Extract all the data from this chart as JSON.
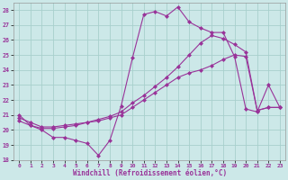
{
  "xlabel": "Windchill (Refroidissement éolien,°C)",
  "xlim": [
    -0.5,
    23.5
  ],
  "ylim": [
    18,
    28.5
  ],
  "xticks": [
    0,
    1,
    2,
    3,
    4,
    5,
    6,
    7,
    8,
    9,
    10,
    11,
    12,
    13,
    14,
    15,
    16,
    17,
    18,
    19,
    20,
    21,
    22,
    23
  ],
  "yticks": [
    18,
    19,
    20,
    21,
    22,
    23,
    24,
    25,
    26,
    27,
    28
  ],
  "bg_color": "#cce8e8",
  "line_color": "#993399",
  "grid_color": "#a8d0cc",
  "line1_x": [
    0,
    1,
    2,
    3,
    4,
    5,
    6,
    7,
    8,
    9,
    10,
    11,
    12,
    13,
    14,
    15,
    16,
    17,
    18,
    19,
    20,
    21,
    22,
    23
  ],
  "line1_y": [
    21.0,
    20.3,
    20.0,
    19.5,
    19.5,
    19.3,
    19.1,
    18.3,
    19.3,
    21.6,
    24.8,
    27.7,
    27.9,
    27.6,
    28.2,
    27.2,
    26.8,
    26.5,
    26.5,
    24.9,
    21.4,
    21.2,
    23.0,
    21.5
  ],
  "line2_x": [
    0,
    1,
    2,
    3,
    4,
    5,
    6,
    7,
    8,
    9,
    10,
    11,
    12,
    13,
    14,
    15,
    16,
    17,
    18,
    19,
    20,
    21,
    22,
    23
  ],
  "line2_y": [
    20.8,
    20.5,
    20.2,
    20.2,
    20.3,
    20.4,
    20.5,
    20.6,
    20.8,
    21.0,
    21.5,
    22.0,
    22.5,
    23.0,
    23.5,
    23.8,
    24.0,
    24.3,
    24.7,
    25.0,
    24.9,
    21.3,
    21.5,
    21.5
  ],
  "line3_x": [
    0,
    1,
    2,
    3,
    4,
    5,
    6,
    7,
    8,
    9,
    10,
    11,
    12,
    13,
    14,
    15,
    16,
    17,
    18,
    19,
    20,
    21,
    22,
    23
  ],
  "line3_y": [
    20.6,
    20.3,
    20.1,
    20.1,
    20.2,
    20.3,
    20.5,
    20.7,
    20.9,
    21.2,
    21.8,
    22.3,
    22.9,
    23.5,
    24.2,
    25.0,
    25.8,
    26.3,
    26.1,
    25.7,
    25.2,
    21.3,
    21.5,
    21.5
  ]
}
